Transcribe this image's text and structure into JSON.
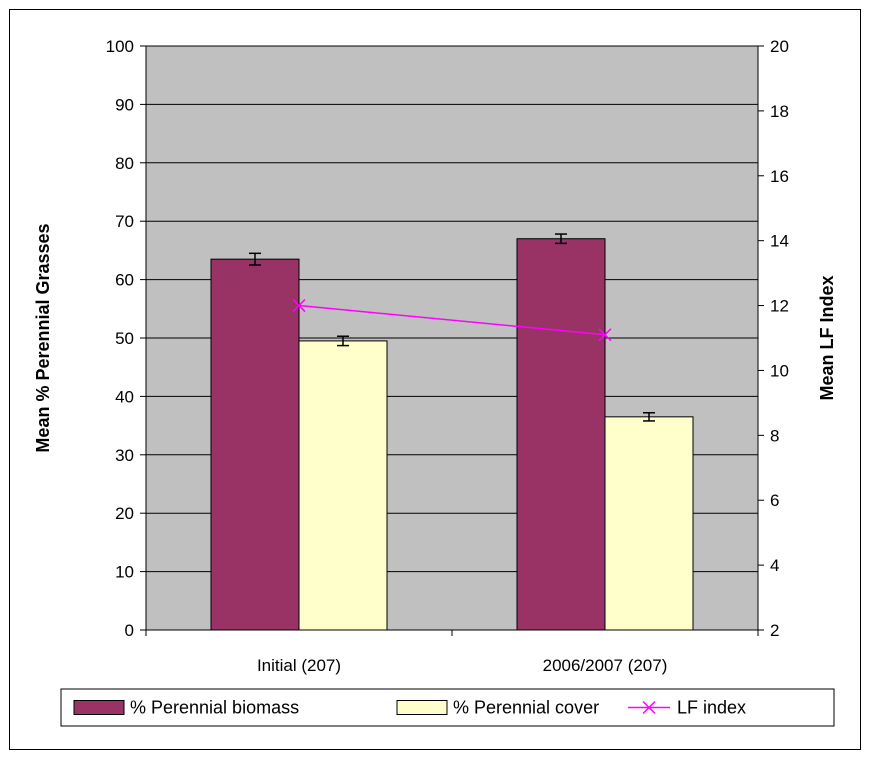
{
  "chart_data": {
    "type": "bar",
    "categories": [
      "Initial (207)",
      "2006/2007 (207)"
    ],
    "series": [
      {
        "name": "% Perennial biomass",
        "values": [
          63.5,
          67.0
        ],
        "error": [
          1.0,
          0.8
        ],
        "color": "#993366",
        "axis": "left"
      },
      {
        "name": "% Perennial cover",
        "values": [
          49.5,
          36.5
        ],
        "error": [
          0.8,
          0.7
        ],
        "color": "#ffffcc",
        "axis": "left"
      },
      {
        "name": "LF index",
        "type": "line",
        "values": [
          12.0,
          11.1
        ],
        "color": "#ff00ff",
        "marker": "x",
        "axis": "right"
      }
    ],
    "ylabel": "Mean % Perennial Grasses",
    "ylabel_right": "Mean LF Index",
    "ylim": [
      0,
      100
    ],
    "ylim_right": [
      2,
      20
    ],
    "yticks": [
      "0",
      "10",
      "20",
      "30",
      "40",
      "50",
      "60",
      "70",
      "80",
      "90",
      "100"
    ],
    "yticks_right": [
      "2",
      "4",
      "6",
      "8",
      "10",
      "12",
      "14",
      "16",
      "18",
      "20"
    ],
    "plot_background": "#c0c0c0",
    "grid": true,
    "legend_position": "bottom"
  }
}
